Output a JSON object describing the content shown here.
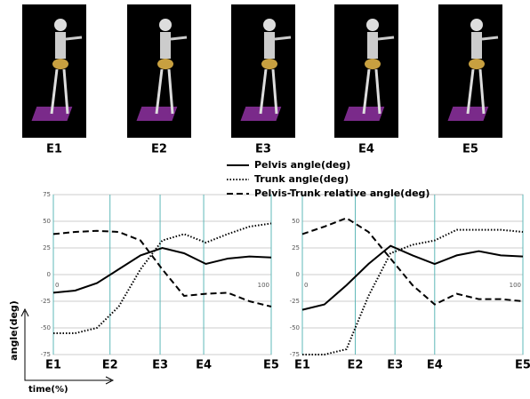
{
  "panels": [
    "E1",
    "E2",
    "E3",
    "E4",
    "E5"
  ],
  "y_axis_label": "angle(deg)",
  "x_axis_label": "time(%)",
  "chart_data": [
    {
      "type": "line",
      "xlim": [
        0,
        100
      ],
      "ylim": [
        -75,
        75
      ],
      "yticks": [
        75,
        50,
        25,
        0,
        -25,
        -50,
        -75
      ],
      "xticks": [
        {
          "value": 0,
          "label": "E1"
        },
        {
          "value": 26,
          "label": "E2"
        },
        {
          "value": 49,
          "label": "E3"
        },
        {
          "value": 69,
          "label": "E4"
        },
        {
          "value": 100,
          "label": "E5"
        }
      ],
      "grid": true,
      "x": [
        0,
        10,
        20,
        30,
        40,
        50,
        60,
        70,
        80,
        90,
        100
      ],
      "series": [
        {
          "name": "Pelvis angle(deg)",
          "color": "#000000",
          "dash": "solid",
          "values": [
            -17,
            -15,
            -8,
            5,
            18,
            25,
            20,
            10,
            15,
            17,
            16
          ]
        },
        {
          "name": "Trunk angle(deg)",
          "color": "#000000",
          "dash": "dotted",
          "values": [
            -55,
            -55,
            -50,
            -30,
            5,
            32,
            38,
            30,
            38,
            45,
            48
          ]
        },
        {
          "name": "Pelvis-Trunk relative angle(deg)",
          "color": "#000000",
          "dash": "dashed",
          "values": [
            38,
            40,
            41,
            40,
            32,
            5,
            -20,
            -18,
            -17,
            -25,
            -30
          ]
        }
      ]
    },
    {
      "type": "line",
      "xlim": [
        0,
        100
      ],
      "ylim": [
        -75,
        75
      ],
      "yticks": [
        50,
        25,
        0,
        -25,
        -50,
        -75
      ],
      "xticks": [
        {
          "value": 0,
          "label": "E1"
        },
        {
          "value": 24,
          "label": "E2"
        },
        {
          "value": 42,
          "label": "E3"
        },
        {
          "value": 60,
          "label": "E4"
        },
        {
          "value": 100,
          "label": "E5"
        }
      ],
      "grid": true,
      "x": [
        0,
        10,
        20,
        30,
        40,
        50,
        60,
        70,
        80,
        90,
        100
      ],
      "series": [
        {
          "color": "#000000",
          "dash": "solid",
          "values": [
            -33,
            -28,
            -10,
            10,
            27,
            18,
            10,
            18,
            22,
            18,
            17
          ]
        },
        {
          "color": "#000000",
          "dash": "dotted",
          "values": [
            -75,
            -75,
            -70,
            -20,
            20,
            28,
            32,
            42,
            42,
            42,
            40
          ]
        },
        {
          "color": "#000000",
          "dash": "dashed",
          "values": [
            38,
            45,
            53,
            40,
            15,
            -10,
            -28,
            -18,
            -23,
            -23,
            -25
          ]
        }
      ]
    }
  ]
}
